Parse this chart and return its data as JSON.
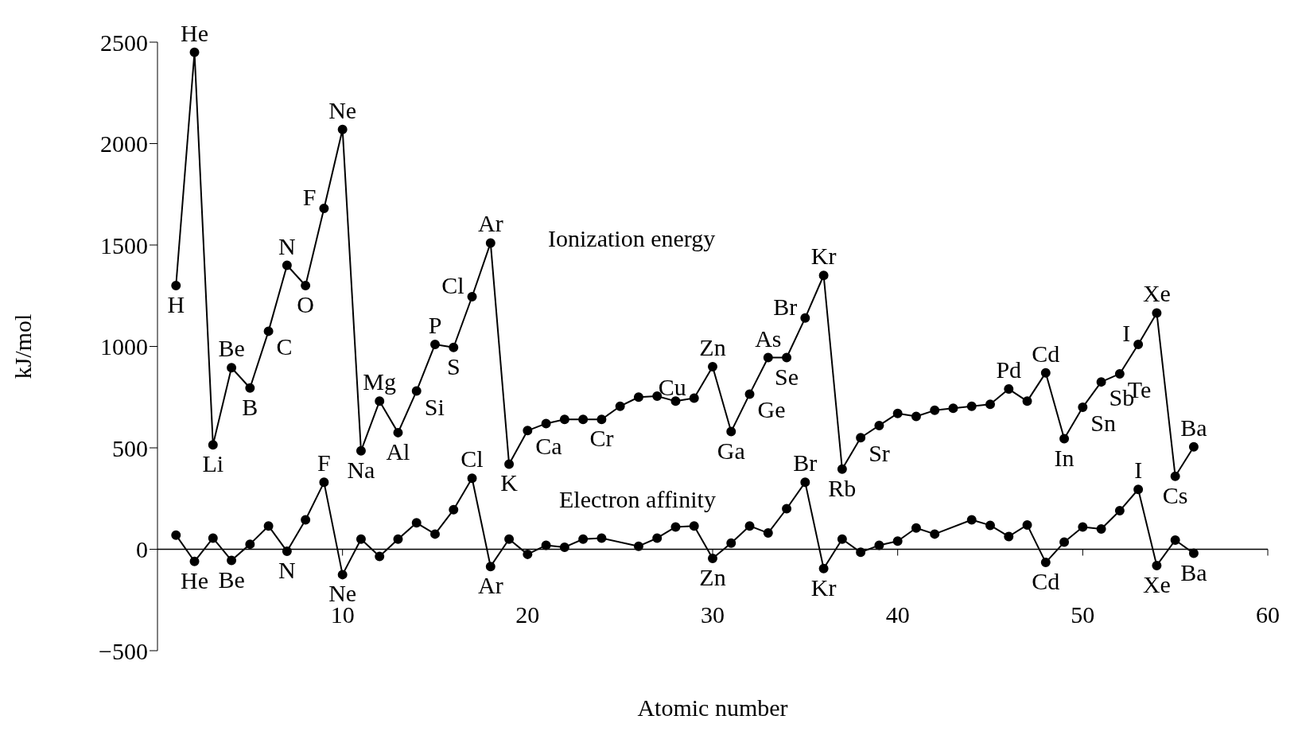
{
  "chart_data": {
    "type": "line",
    "xlabel": "Atomic number",
    "ylabel": "kJ/mol",
    "xlim": [
      0,
      60
    ],
    "xticks": [
      10,
      20,
      30,
      40,
      50,
      60
    ],
    "ylim": [
      -500,
      2500
    ],
    "yticks": [
      -500,
      0,
      500,
      1000,
      1500,
      2000,
      2500
    ],
    "grid": false,
    "legend": false,
    "marker": "circle",
    "line_style": "solid",
    "series": [
      {
        "name": "Ionization energy",
        "color": "#000000",
        "x": [
          1,
          2,
          3,
          4,
          5,
          6,
          7,
          8,
          9,
          10,
          11,
          12,
          13,
          14,
          15,
          16,
          17,
          18,
          19,
          20,
          21,
          22,
          23,
          24,
          25,
          26,
          27,
          28,
          29,
          30,
          31,
          32,
          33,
          34,
          35,
          36,
          37,
          38,
          39,
          40,
          41,
          42,
          43,
          44,
          45,
          46,
          47,
          48,
          49,
          50,
          51,
          52,
          53,
          54,
          55,
          56
        ],
        "values": [
          1300,
          2450,
          515,
          895,
          795,
          1075,
          1400,
          1300,
          1680,
          2070,
          485,
          730,
          575,
          780,
          1010,
          995,
          1245,
          1510,
          420,
          585,
          620,
          640,
          640,
          640,
          705,
          750,
          755,
          730,
          745,
          900,
          580,
          765,
          945,
          945,
          1140,
          1350,
          395,
          550,
          610,
          670,
          655,
          685,
          695,
          705,
          715,
          790,
          730,
          870,
          545,
          700,
          825,
          865,
          1010,
          1165,
          360,
          505
        ]
      },
      {
        "name": "Electron affinity",
        "color": "#000000",
        "x": [
          1,
          2,
          3,
          4,
          5,
          6,
          7,
          8,
          9,
          10,
          11,
          12,
          13,
          14,
          15,
          16,
          17,
          18,
          19,
          20,
          21,
          22,
          23,
          24,
          26,
          27,
          28,
          29,
          30,
          31,
          32,
          33,
          34,
          35,
          36,
          37,
          38,
          39,
          40,
          41,
          42,
          44,
          45,
          46,
          47,
          48,
          49,
          50,
          51,
          52,
          53,
          54,
          55,
          56
        ],
        "values": [
          70,
          -60,
          55,
          -55,
          25,
          115,
          -10,
          145,
          330,
          -125,
          50,
          -35,
          50,
          130,
          75,
          195,
          350,
          -85,
          50,
          -25,
          20,
          10,
          50,
          55,
          15,
          55,
          110,
          115,
          -45,
          30,
          115,
          80,
          200,
          330,
          -95,
          50,
          -15,
          20,
          40,
          105,
          75,
          145,
          118,
          63,
          120,
          -65,
          35,
          110,
          100,
          190,
          295,
          -80,
          45,
          -20
        ]
      }
    ],
    "annotations": [
      {
        "text": "H",
        "x": 1,
        "y": 1300
      },
      {
        "text": "He",
        "x": 2,
        "y": 2450
      },
      {
        "text": "Li",
        "x": 3,
        "y": 515
      },
      {
        "text": "Be",
        "x": 4,
        "y": 895
      },
      {
        "text": "B",
        "x": 5,
        "y": 795
      },
      {
        "text": "C",
        "x": 6,
        "y": 1075
      },
      {
        "text": "N",
        "x": 7,
        "y": 1400
      },
      {
        "text": "O",
        "x": 8,
        "y": 1300
      },
      {
        "text": "F",
        "x": 9,
        "y": 1680
      },
      {
        "text": "Ne",
        "x": 10,
        "y": 2070
      },
      {
        "text": "Na",
        "x": 11,
        "y": 485
      },
      {
        "text": "Mg",
        "x": 12,
        "y": 730
      },
      {
        "text": "Al",
        "x": 13,
        "y": 575
      },
      {
        "text": "Si",
        "x": 14,
        "y": 780
      },
      {
        "text": "P",
        "x": 15,
        "y": 1010
      },
      {
        "text": "S",
        "x": 16,
        "y": 995
      },
      {
        "text": "Cl",
        "x": 17,
        "y": 1245
      },
      {
        "text": "Ar",
        "x": 18,
        "y": 1510
      },
      {
        "text": "K",
        "x": 19,
        "y": 420
      },
      {
        "text": "Ca",
        "x": 20,
        "y": 585
      },
      {
        "text": "Cr",
        "x": 24,
        "y": 640
      },
      {
        "text": "Cu",
        "x": 29,
        "y": 745
      },
      {
        "text": "Zn",
        "x": 30,
        "y": 900
      },
      {
        "text": "Ga",
        "x": 31,
        "y": 580
      },
      {
        "text": "Ge",
        "x": 32,
        "y": 765
      },
      {
        "text": "As",
        "x": 33,
        "y": 945
      },
      {
        "text": "Se",
        "x": 34,
        "y": 945
      },
      {
        "text": "Br",
        "x": 35,
        "y": 1140
      },
      {
        "text": "Kr",
        "x": 36,
        "y": 1350
      },
      {
        "text": "Rb",
        "x": 37,
        "y": 395
      },
      {
        "text": "Sr",
        "x": 38,
        "y": 550
      },
      {
        "text": "Pd",
        "x": 46,
        "y": 790
      },
      {
        "text": "Cd",
        "x": 48,
        "y": 870
      },
      {
        "text": "In",
        "x": 49,
        "y": 545
      },
      {
        "text": "Sn",
        "x": 50,
        "y": 700
      },
      {
        "text": "Sb",
        "x": 51,
        "y": 825
      },
      {
        "text": "Te",
        "x": 52,
        "y": 865
      },
      {
        "text": "I",
        "x": 53,
        "y": 1010
      },
      {
        "text": "Xe",
        "x": 54,
        "y": 1165
      },
      {
        "text": "Cs",
        "x": 55,
        "y": 360
      },
      {
        "text": "Ba",
        "x": 56,
        "y": 505
      },
      {
        "text": "He",
        "x": 2,
        "y": -60
      },
      {
        "text": "Be",
        "x": 4,
        "y": -55
      },
      {
        "text": "N",
        "x": 7,
        "y": -10
      },
      {
        "text": "F",
        "x": 9,
        "y": 330
      },
      {
        "text": "Ne",
        "x": 10,
        "y": -125
      },
      {
        "text": "Cl",
        "x": 17,
        "y": 350
      },
      {
        "text": "Ar",
        "x": 18,
        "y": -85
      },
      {
        "text": "Zn",
        "x": 30,
        "y": -45
      },
      {
        "text": "Br",
        "x": 35,
        "y": 330
      },
      {
        "text": "Kr",
        "x": 36,
        "y": -95
      },
      {
        "text": "Cd",
        "x": 48,
        "y": -65
      },
      {
        "text": "I",
        "x": 53,
        "y": 295
      },
      {
        "text": "Xe",
        "x": 54,
        "y": -80
      },
      {
        "text": "Ba",
        "x": 56,
        "y": -20
      }
    ]
  }
}
